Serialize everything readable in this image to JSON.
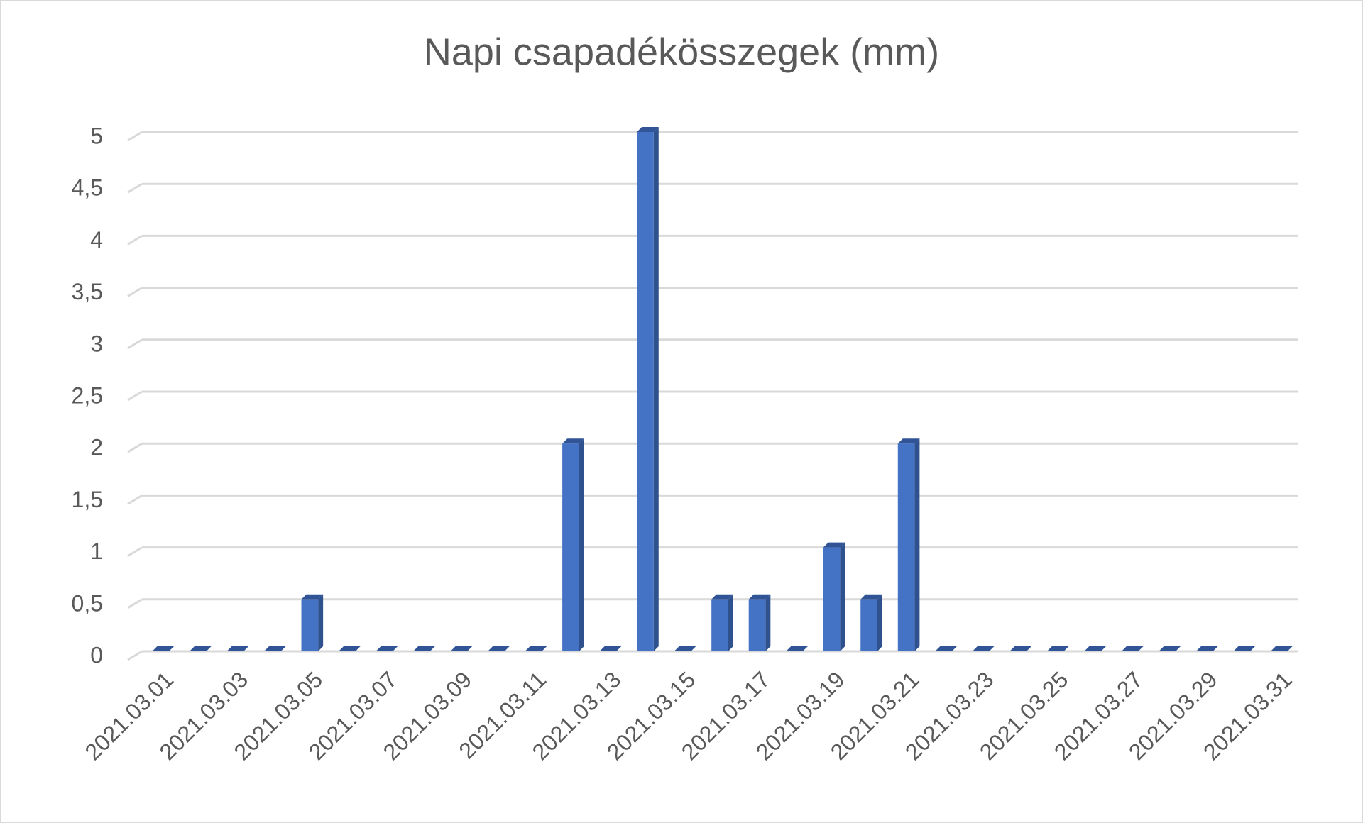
{
  "chart_data": {
    "type": "bar",
    "title": "Napi csapadékösszegek (mm)",
    "categories": [
      "2021.03.01",
      null,
      "2021.03.03",
      null,
      "2021.03.05",
      null,
      "2021.03.07",
      null,
      "2021.03.09",
      null,
      "2021.03.11",
      null,
      "2021.03.13",
      null,
      "2021.03.15",
      null,
      "2021.03.17",
      null,
      "2021.03.19",
      null,
      "2021.03.21",
      null,
      "2021.03.23",
      null,
      "2021.03.25",
      null,
      "2021.03.27",
      null,
      "2021.03.29",
      null,
      "2021.03.31"
    ],
    "values": [
      0,
      0,
      0,
      0,
      0.5,
      0,
      0,
      0,
      0,
      0,
      0,
      2,
      0,
      5,
      0,
      0.5,
      0.5,
      0,
      1,
      0.5,
      2,
      0,
      0,
      0,
      0,
      0,
      0,
      0,
      0,
      0,
      0
    ],
    "color": "#4472c4",
    "ylim": [
      0,
      5
    ],
    "yticks": [
      0,
      {
        "value": 0.5,
        "label": "0,5"
      },
      1,
      {
        "value": 1.5,
        "label": "1,5"
      },
      2,
      {
        "value": 2.5,
        "label": "2,5"
      },
      3,
      {
        "value": 3.5,
        "label": "3,5"
      },
      4,
      {
        "value": 4.5,
        "label": "4,5"
      },
      5
    ],
    "grid": true
  }
}
